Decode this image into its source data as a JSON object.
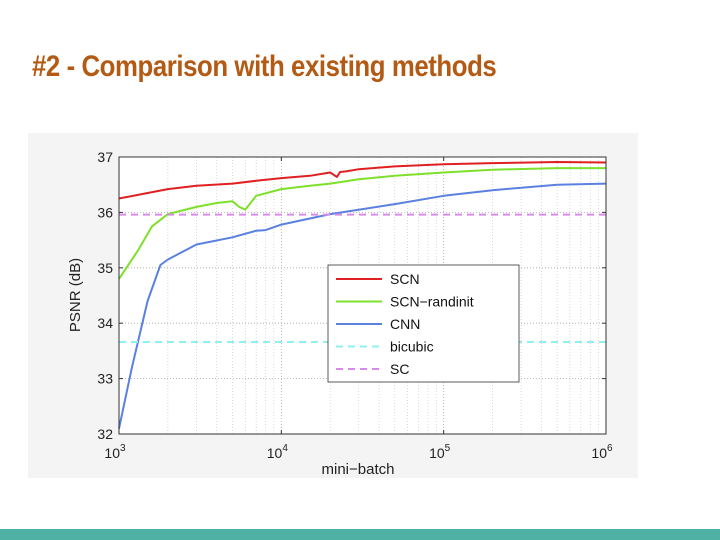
{
  "slide": {
    "title": "#2 - Comparison with existing methods"
  },
  "colors": {
    "title": "#b35a14",
    "bottom_bar": "#4fb0a4",
    "figure_bg": "#f4f4f4"
  },
  "chart_data": {
    "type": "line",
    "title": "",
    "xlabel": "mini−batch",
    "ylabel": "PSNR (dB)",
    "xscale": "log",
    "xlim": [
      1000,
      1000000
    ],
    "ylim": [
      32,
      37
    ],
    "grid": true,
    "legend_position": "right-center",
    "x_ticks": [
      {
        "value": 1000,
        "base": "10",
        "exp": "3"
      },
      {
        "value": 10000,
        "base": "10",
        "exp": "4"
      },
      {
        "value": 100000,
        "base": "10",
        "exp": "5"
      },
      {
        "value": 1000000,
        "base": "10",
        "exp": "6"
      }
    ],
    "y_ticks": [
      32,
      33,
      34,
      35,
      36,
      37
    ],
    "series": [
      {
        "name": "SCN",
        "color": "#e02020",
        "style": "solid",
        "x": [
          1000,
          1500,
          2000,
          3000,
          5000,
          7000,
          10000,
          15000,
          20000,
          22000,
          23000,
          25000,
          30000,
          50000,
          100000,
          200000,
          500000,
          1000000
        ],
        "y": [
          36.25,
          36.35,
          36.42,
          36.48,
          36.52,
          36.57,
          36.62,
          36.66,
          36.72,
          36.64,
          36.73,
          36.74,
          36.78,
          36.83,
          36.87,
          36.89,
          36.91,
          36.9
        ]
      },
      {
        "name": "SCN−randinit",
        "color": "#7ee02a",
        "style": "solid",
        "x": [
          1000,
          1300,
          1600,
          2000,
          3000,
          4000,
          5000,
          5500,
          6000,
          7000,
          10000,
          15000,
          20000,
          30000,
          50000,
          100000,
          200000,
          500000,
          1000000
        ],
        "y": [
          34.8,
          35.3,
          35.75,
          35.97,
          36.1,
          36.17,
          36.2,
          36.1,
          36.05,
          36.3,
          36.42,
          36.48,
          36.52,
          36.6,
          36.66,
          36.72,
          36.77,
          36.8,
          36.8
        ]
      },
      {
        "name": "CNN",
        "color": "#5a80e0",
        "style": "solid",
        "x": [
          1000,
          1200,
          1500,
          1800,
          2000,
          3000,
          5000,
          7000,
          8000,
          10000,
          20000,
          50000,
          100000,
          200000,
          500000,
          1000000
        ],
        "y": [
          32.1,
          33.2,
          34.4,
          35.05,
          35.15,
          35.42,
          35.55,
          35.67,
          35.68,
          35.78,
          35.97,
          36.15,
          36.3,
          36.4,
          36.5,
          36.52
        ]
      },
      {
        "name": "bicubic",
        "color": "#8ff0f0",
        "style": "dashed",
        "x": [
          1000,
          1000000
        ],
        "y": [
          33.66,
          33.66
        ]
      },
      {
        "name": "SC",
        "color": "#d98ae8",
        "style": "dashed",
        "x": [
          1000,
          1000000
        ],
        "y": [
          35.96,
          35.96
        ]
      }
    ]
  }
}
